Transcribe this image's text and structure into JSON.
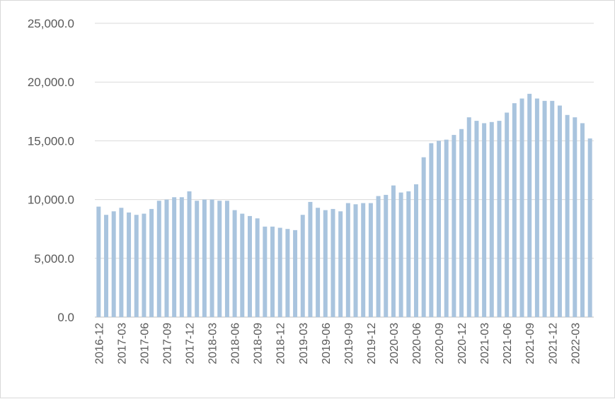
{
  "chart_data": {
    "type": "bar",
    "title": "",
    "xlabel": "",
    "ylabel": "",
    "ylim": [
      0,
      25000
    ],
    "y_ticks": [
      "0.0",
      "5,000.0",
      "10,000.0",
      "15,000.0",
      "20,000.0",
      "25,000.0"
    ],
    "y_tick_values": [
      0,
      5000,
      10000,
      15000,
      20000,
      25000
    ],
    "x_tick_labels": [
      "2016-12",
      "2017-03",
      "2017-06",
      "2017-09",
      "2017-12",
      "2018-03",
      "2018-06",
      "2018-09",
      "2018-12",
      "2019-03",
      "2019-06",
      "2019-09",
      "2019-12",
      "2020-03",
      "2020-06",
      "2020-09",
      "2020-12",
      "2021-03",
      "2021-06",
      "2021-09",
      "2021-12",
      "2022-03"
    ],
    "grid": true,
    "legend": "none",
    "colors": {
      "bar": "#a9c4de",
      "grid": "#d9d9d9",
      "text": "#595959"
    },
    "categories": [
      "2016-12",
      "2017-01",
      "2017-02",
      "2017-03",
      "2017-04",
      "2017-05",
      "2017-06",
      "2017-07",
      "2017-08",
      "2017-09",
      "2017-10",
      "2017-11",
      "2017-12",
      "2018-01",
      "2018-02",
      "2018-03",
      "2018-04",
      "2018-05",
      "2018-06",
      "2018-07",
      "2018-08",
      "2018-09",
      "2018-10",
      "2018-11",
      "2018-12",
      "2019-01",
      "2019-02",
      "2019-03",
      "2019-04",
      "2019-05",
      "2019-06",
      "2019-07",
      "2019-08",
      "2019-09",
      "2019-10",
      "2019-11",
      "2019-12",
      "2020-01",
      "2020-02",
      "2020-03",
      "2020-04",
      "2020-05",
      "2020-06",
      "2020-07",
      "2020-08",
      "2020-09",
      "2020-10",
      "2020-11",
      "2020-12",
      "2021-01",
      "2021-02",
      "2021-03",
      "2021-04",
      "2021-05",
      "2021-06",
      "2021-07",
      "2021-08",
      "2021-09",
      "2021-10",
      "2021-11",
      "2021-12",
      "2022-01",
      "2022-02",
      "2022-03",
      "2022-04",
      "2022-05"
    ],
    "values": [
      9400,
      8700,
      9000,
      9300,
      8900,
      8700,
      8800,
      9200,
      9900,
      10000,
      10200,
      10200,
      10700,
      9900,
      10000,
      10000,
      9900,
      9900,
      9100,
      8800,
      8600,
      8400,
      7700,
      7700,
      7600,
      7500,
      7400,
      8700,
      9800,
      9300,
      9100,
      9200,
      9000,
      9700,
      9600,
      9700,
      9700,
      10300,
      10400,
      11200,
      10600,
      10700,
      11300,
      13600,
      14800,
      15000,
      15100,
      15500,
      16000,
      17000,
      16700,
      16500,
      16600,
      16700,
      17400,
      18200,
      18600,
      19000,
      18600,
      18400,
      18400,
      18000,
      17200,
      17000,
      16500,
      15200
    ]
  }
}
